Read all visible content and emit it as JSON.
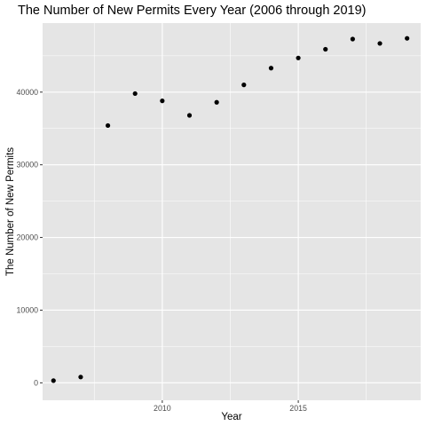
{
  "chart_data": {
    "type": "scatter",
    "title": "The Number of New Permits Every Year (2006 through 2019)",
    "xlabel": "Year",
    "ylabel": "The Number of New Permits",
    "x": [
      2006,
      2007,
      2008,
      2009,
      2010,
      2011,
      2012,
      2013,
      2014,
      2015,
      2016,
      2017,
      2018,
      2019
    ],
    "y": [
      300,
      800,
      35400,
      39800,
      38800,
      36800,
      38600,
      41000,
      43300,
      44700,
      45900,
      47300,
      46700,
      47400
    ],
    "xlim": [
      2005.6,
      2019.5
    ],
    "ylim": [
      -2400,
      49500
    ],
    "x_ticks": [
      2010,
      2015
    ],
    "x_tick_labels": [
      "2010",
      "2015"
    ],
    "y_ticks": [
      0,
      10000,
      20000,
      30000,
      40000
    ],
    "y_tick_labels": [
      "0",
      "10000",
      "20000",
      "30000",
      "40000"
    ],
    "grid": true,
    "background": "#e5e5e5",
    "grid_color": "#ffffff",
    "point_color": "#000000",
    "legend": "none"
  }
}
